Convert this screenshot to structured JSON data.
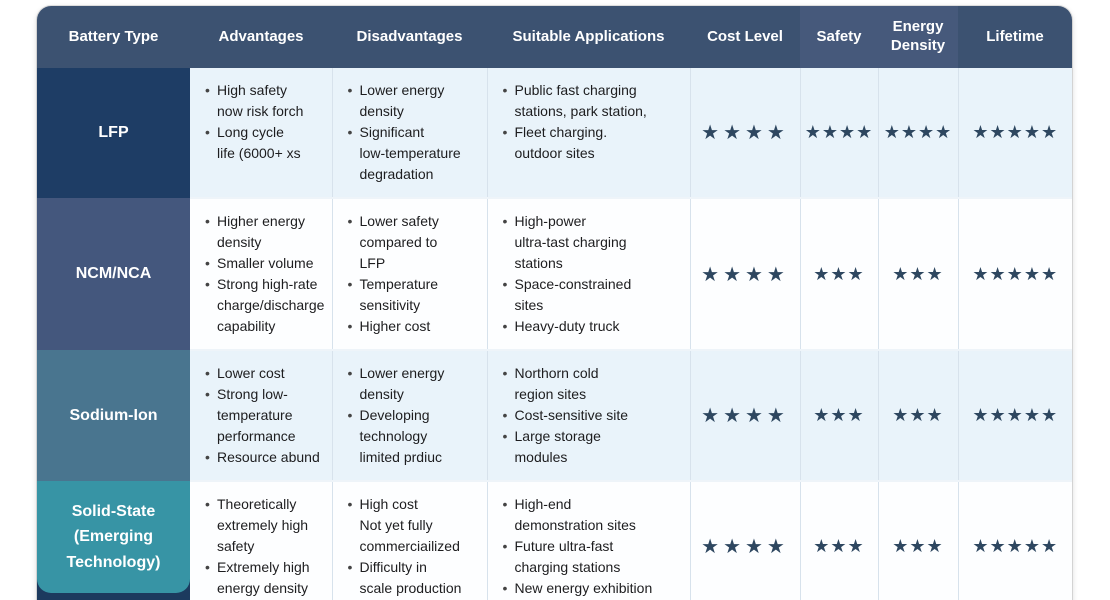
{
  "config": {
    "star_glyph": "★",
    "colors": {
      "header_bg": "#3c5271",
      "header_highlight_bg": "#46597b",
      "star_color": "#2e4760",
      "row_light_bg": "#e9f3fa",
      "row_white_bg": "#fdfeff",
      "type_bottom_strip": "#1c3a5e"
    }
  },
  "table": {
    "headers": [
      {
        "label": "Battery Type"
      },
      {
        "label": "Advantages"
      },
      {
        "label": "Disadvantages"
      },
      {
        "label": "Suitable Applications"
      },
      {
        "label": "Cost Level"
      },
      {
        "label": "Safety"
      },
      {
        "label": "Energy Density"
      },
      {
        "label": "Lifetime"
      }
    ],
    "rows": [
      {
        "battery_type": "LFP",
        "type_color": "#1e3d65",
        "row_bg": "#e9f3fa",
        "advantages": [
          "High safety\nnow risk forch",
          "Long cycle\nlife (6000+ xs"
        ],
        "disadvantages": [
          "Lower energy\ndensity",
          "Significant\nlow-temperature\ndegradation"
        ],
        "applications": [
          "Public fast charging\nstations, park station,",
          "Fleet charging.\noutdoor sites"
        ],
        "cost_level": 4,
        "safety": 4,
        "energy_density": 4,
        "lifetime": 5
      },
      {
        "battery_type": "NCM/NCA",
        "type_color": "#44577d",
        "row_bg": "#fdfeff",
        "advantages": [
          "Higher energy\ndensity",
          "Smaller volume",
          "Strong high-rate\ncharge/discharge\ncapability"
        ],
        "disadvantages": [
          "Lower safety\ncompared to\nLFP",
          "Temperature\nsensitivity",
          "Higher cost"
        ],
        "applications": [
          "High-power\nultra-tast charging\nstations",
          "Space-constrained\nsites",
          "Heavy-duty truck"
        ],
        "cost_level": 4,
        "safety": 3,
        "energy_density": 3,
        "lifetime": 5
      },
      {
        "battery_type": "Sodium-Ion",
        "type_color": "#49758f",
        "row_bg": "#e9f3fa",
        "advantages": [
          "Lower cost",
          "Strong low-\ntemperature\nperformance",
          "Resource abund"
        ],
        "disadvantages": [
          "Lower energy\ndensity",
          "Developing\ntechnology\nlimited prdiuc"
        ],
        "applications": [
          "Northorn cold\nregion sites",
          "Cost-sensitive site",
          "Large storage\nmodules"
        ],
        "cost_level": 4,
        "safety": 3,
        "energy_density": 3,
        "lifetime": 5
      },
      {
        "battery_type": "Solid-State\n(Emerging\nTechnology)",
        "type_color": "#3794a5",
        "row_bg": "#fdfeff",
        "last": true,
        "advantages": [
          "Theoretically\nextremely high\nsafety",
          "Extremely high\nenergy density"
        ],
        "disadvantages": [
          "High cost\nNot yet fully\ncommerciailized",
          "Difficulty in\nscale production"
        ],
        "applications": [
          "High-end\ndemonstration sites",
          "Future ultra-fast\ncharging stations",
          "New energy exhibition"
        ],
        "cost_level": 4,
        "safety": 3,
        "energy_density": 3,
        "lifetime": 5
      }
    ]
  }
}
